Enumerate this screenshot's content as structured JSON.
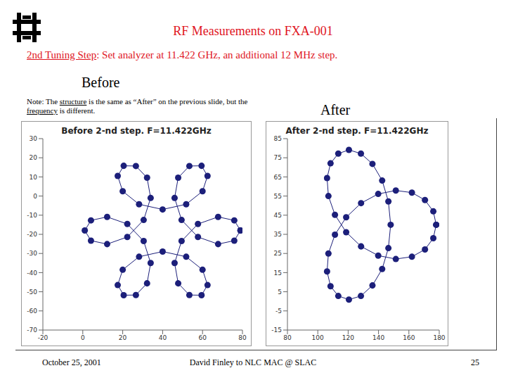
{
  "slide": {
    "title": "RF Measurements on FXA-001",
    "subtitle_lead": "2nd Tuning Step",
    "subtitle_rest": ": Set analyzer at 11.422 GHz, an additional 12 MHz step.",
    "before_label": "Before",
    "after_label": "After",
    "note": [
      "Note: The ",
      "structure",
      " is the same as “After” on the previous slide, but the ",
      "frequency",
      " is different."
    ],
    "footer": {
      "date": "October 25, 2001",
      "author": "David Finley to NLC MAC @ SLAC",
      "page": 25
    }
  },
  "chart_data": [
    {
      "type": "scatter",
      "title": "Before 2-nd step. F=11.422GHz",
      "color": "#1c1f7a",
      "marker": "circle",
      "line_style": "solid",
      "grid": false,
      "xlim": [
        -20,
        80
      ],
      "xticks": [
        -20,
        0,
        20,
        40,
        60,
        80
      ],
      "ylim": [
        -70,
        30
      ],
      "yticks": [
        -70,
        -60,
        -50,
        -40,
        -30,
        -20,
        -10,
        0,
        10,
        20,
        30
      ],
      "x": [
        79,
        75.9,
        67.8,
        57.7,
        49.5,
        46.0,
        47.8,
        53.4,
        59.5,
        62.5,
        60.0,
        51.8,
        40,
        28.2,
        20.0,
        17.5,
        20.5,
        26.6,
        32.2,
        34.0,
        30.5,
        22.3,
        12.2,
        4.1,
        1,
        4.1,
        12.2,
        22.3,
        30.5,
        34.0,
        32.2,
        26.6,
        20.5,
        17.5,
        20.0,
        28.2,
        40,
        51.8,
        60.0,
        62.5,
        59.5,
        53.4,
        47.8,
        46.0,
        49.5,
        57.7,
        67.8,
        75.9,
        79
      ],
      "values": [
        -18,
        -23.3,
        -25.1,
        -21.4,
        -12.5,
        -1.0,
        9.6,
        15.7,
        15.8,
        10.5,
        2.5,
        -4.3,
        -7,
        -4.3,
        2.5,
        10.5,
        15.8,
        15.7,
        9.6,
        -1.0,
        -12.5,
        -21.4,
        -25.1,
        -23.3,
        -18,
        -12.7,
        -10.9,
        -14.6,
        -23.5,
        -35.0,
        -45.6,
        -51.7,
        -51.8,
        -46.5,
        -38.5,
        -31.7,
        -29,
        -31.7,
        -38.5,
        -46.5,
        -51.8,
        -51.7,
        -45.6,
        -35.0,
        -23.5,
        -14.6,
        -10.9,
        -12.7,
        -18
      ]
    },
    {
      "type": "scatter",
      "title": "After 2-nd step. F=11.422GHz",
      "color": "#1c1f7a",
      "marker": "circle",
      "line_style": "solid",
      "grid": false,
      "xlim": [
        80,
        180
      ],
      "xticks": [
        80,
        100,
        120,
        140,
        160,
        180
      ],
      "ylim": [
        -15,
        85
      ],
      "yticks": [
        -15,
        -5,
        5,
        15,
        25,
        35,
        45,
        55,
        65,
        75,
        85
      ],
      "x": [
        178,
        176.1,
        170.6,
        162.0,
        151.4,
        139.8,
        128.5,
        118.7,
        111.3,
        107,
        106.1,
        108.4,
        113.5,
        120.5,
        128.4,
        136.0,
        142.4,
        146.5,
        148,
        146.5,
        142.4,
        136.0,
        128.4,
        120.5,
        113.5,
        108.4,
        106.1,
        107,
        111.3,
        118.7,
        128.5,
        139.8,
        151.4,
        162.0,
        170.6,
        176.1,
        178
      ],
      "values": [
        40,
        33.0,
        27.1,
        23.3,
        22.1,
        23.9,
        28.7,
        36.1,
        45.2,
        55,
        64.4,
        72.1,
        77.2,
        79.1,
        77.2,
        71.8,
        63.1,
        52.2,
        40,
        27.8,
        16.9,
        8.3,
        2.8,
        0.9,
        2.8,
        7.9,
        15.6,
        25,
        34.8,
        43.9,
        51.3,
        56.1,
        57.9,
        56.8,
        52.9,
        47.0,
        40
      ]
    }
  ]
}
